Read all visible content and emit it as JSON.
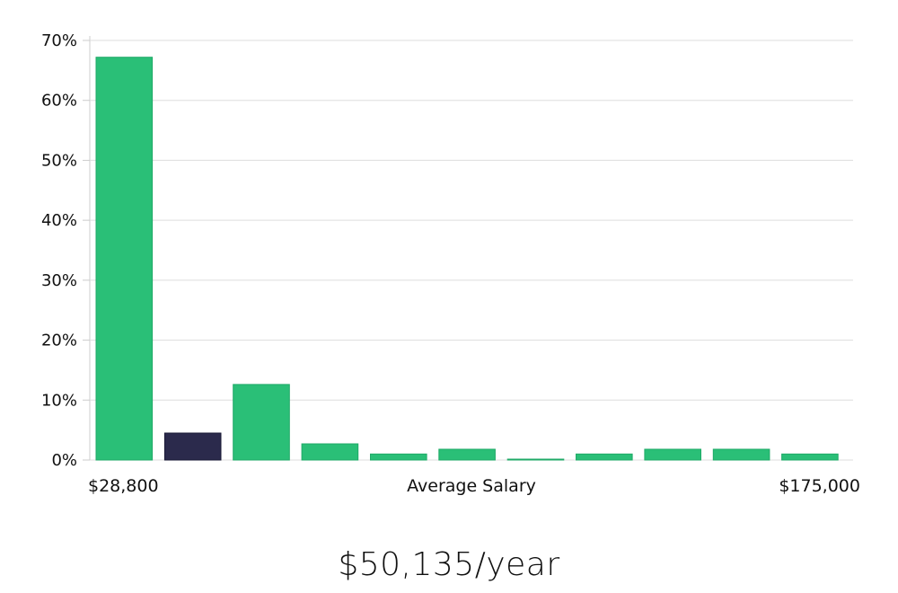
{
  "chart_data": {
    "type": "bar",
    "values": [
      67.2,
      4.5,
      12.6,
      2.7,
      1.0,
      1.8,
      0.1,
      1.0,
      1.8,
      1.8,
      1.0
    ],
    "highlight_index": 1,
    "ylim": [
      0,
      70
    ],
    "yticks": [
      {
        "value": 0,
        "label": "0%"
      },
      {
        "value": 10,
        "label": "10%"
      },
      {
        "value": 20,
        "label": "20%"
      },
      {
        "value": 30,
        "label": "30%"
      },
      {
        "value": 40,
        "label": "40%"
      },
      {
        "value": 50,
        "label": "50%"
      },
      {
        "value": 60,
        "label": "60%"
      },
      {
        "value": 70,
        "label": "70%"
      }
    ],
    "x_min_label": "$28,800",
    "xlabel": "Average Salary",
    "x_max_label": "$175,000",
    "grid": true,
    "colors": {
      "bar": "#2abf77",
      "bar_border": "#1faa67",
      "highlight": "#2b2a4c",
      "grid": "#dddddd",
      "axis": "#cccccc"
    }
  },
  "average_salary_text": "$50,135/year"
}
